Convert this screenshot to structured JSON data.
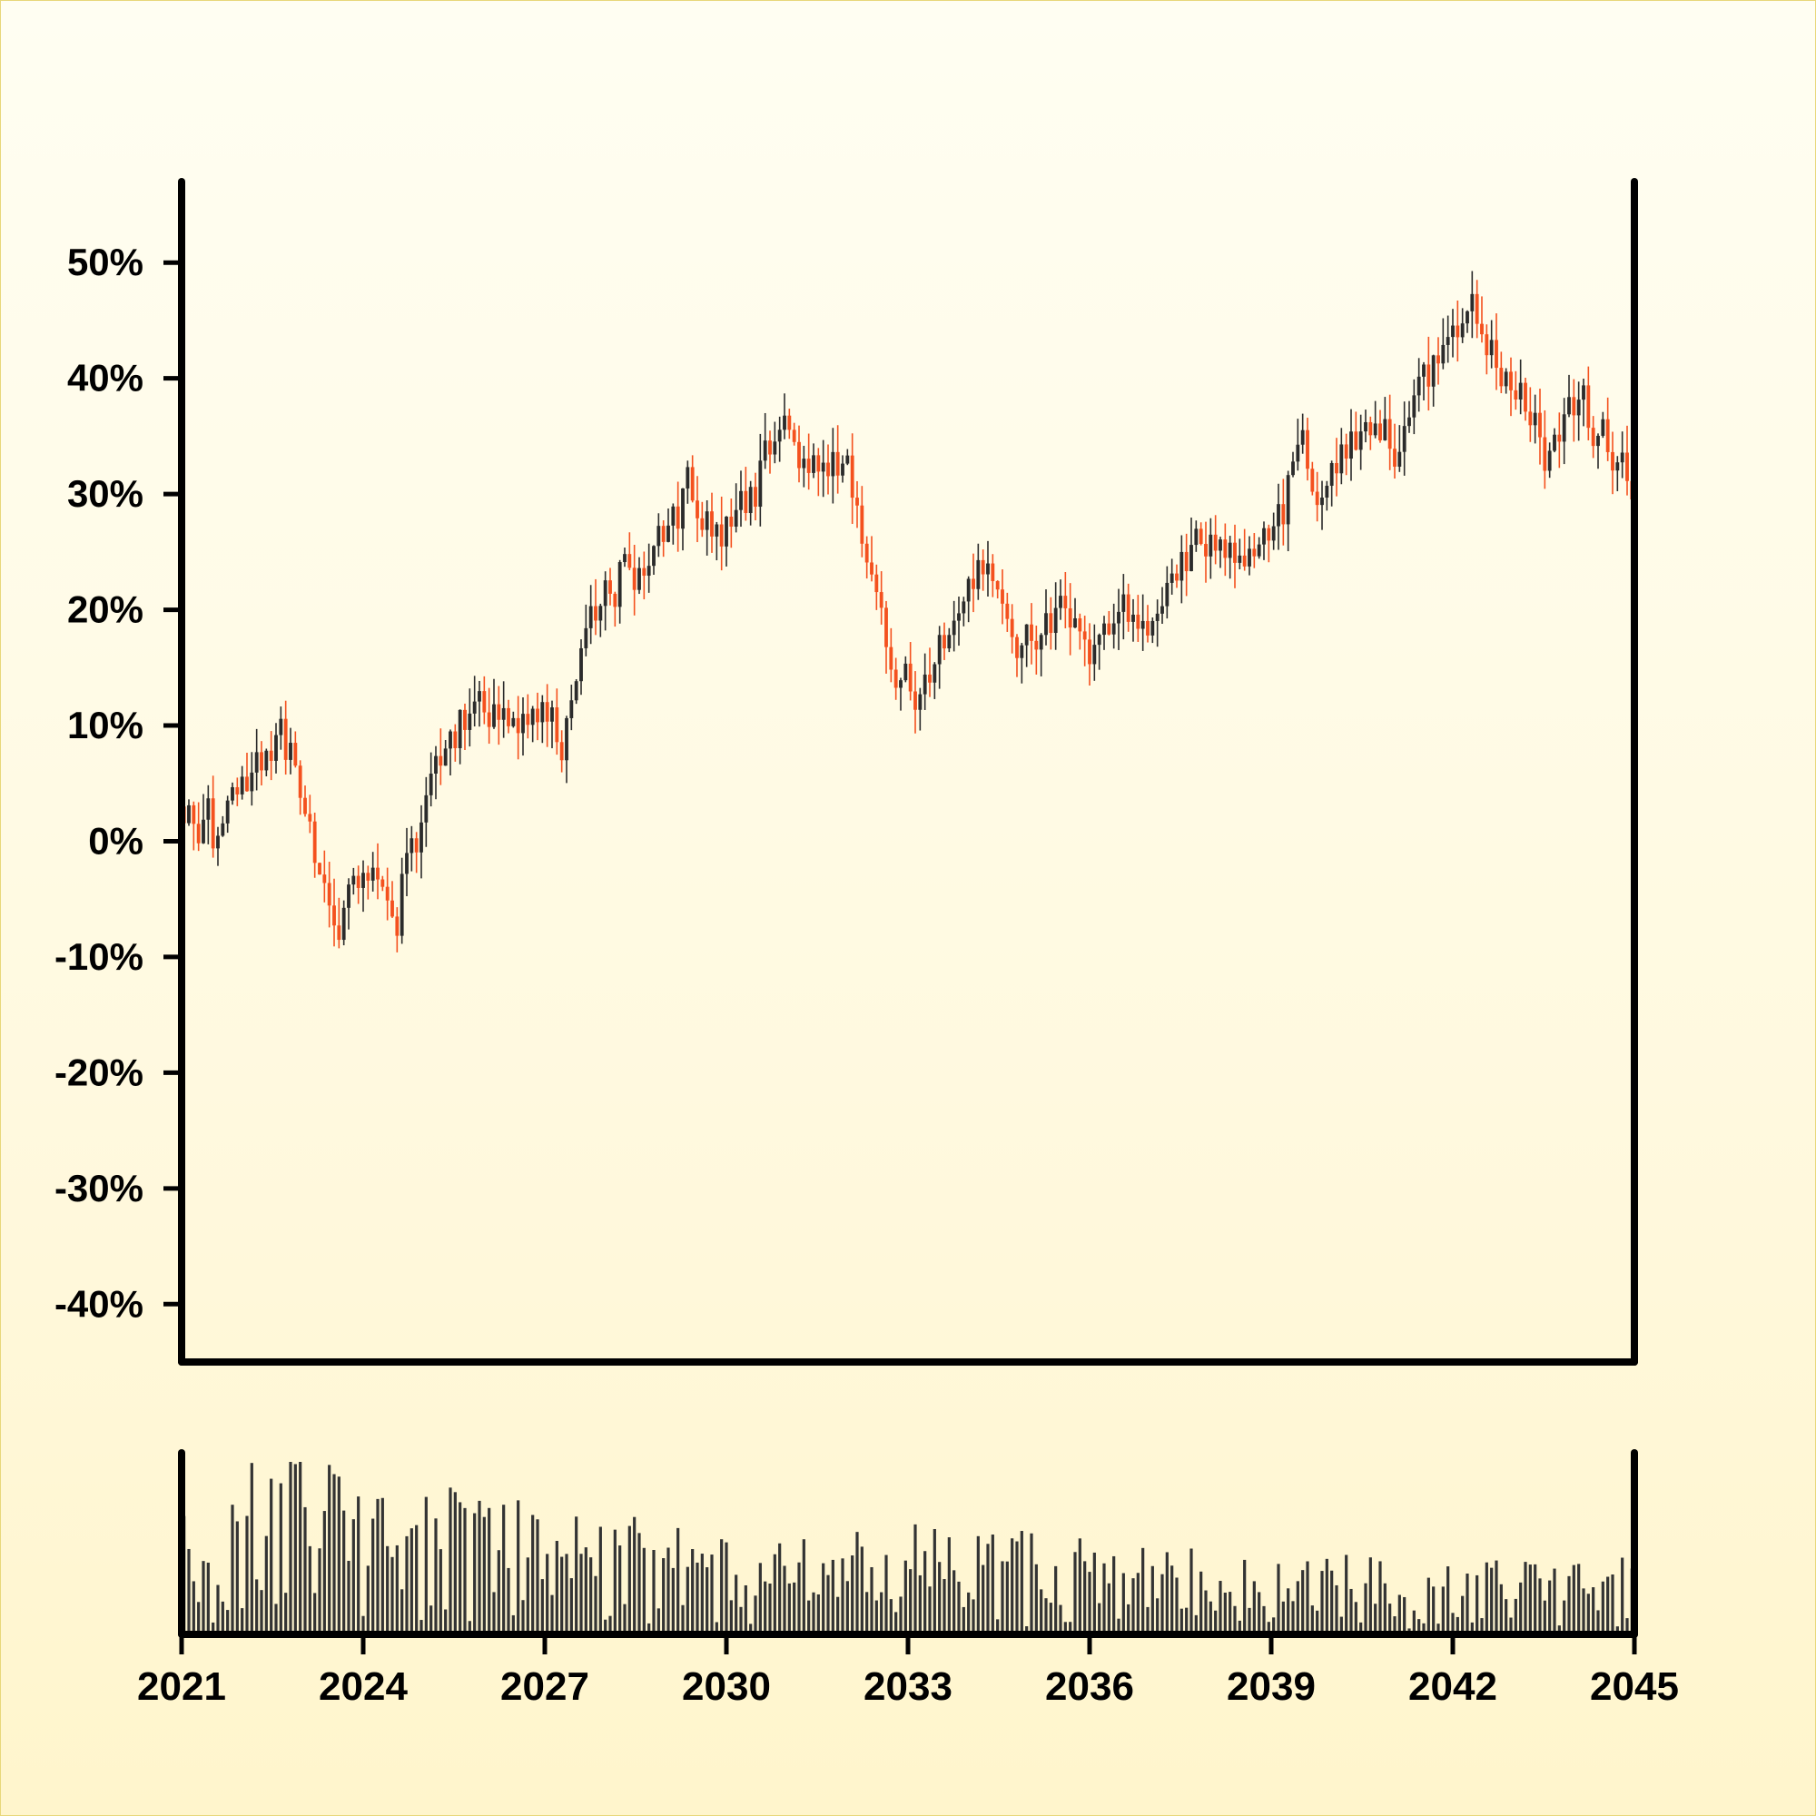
{
  "chart_data": [
    {
      "type": "candlestick",
      "title": "",
      "xlabel": "",
      "ylabel": "",
      "ylim": [
        -45,
        57
      ],
      "y_ticks": [
        -40,
        -30,
        -20,
        -10,
        0,
        10,
        20,
        30,
        40,
        50
      ],
      "y_tick_labels": [
        "-40%",
        "-30%",
        "-20%",
        "-10%",
        "0%",
        "10%",
        "20%",
        "30%",
        "40%",
        "50%"
      ],
      "colors": {
        "up": "#2b2b2b",
        "down": "#f4511e",
        "axis": "#000000"
      },
      "grid": false,
      "legend": "none",
      "close_path": [
        [
          "2021-01",
          3
        ],
        [
          "2021-07",
          0
        ],
        [
          "2022-01",
          5
        ],
        [
          "2022-07",
          8
        ],
        [
          "2022-10",
          8
        ],
        [
          "2023-01",
          4
        ],
        [
          "2023-04",
          -3
        ],
        [
          "2023-08",
          -7
        ],
        [
          "2024-01",
          -2
        ],
        [
          "2024-04",
          -3
        ],
        [
          "2024-07",
          -6
        ],
        [
          "2025-01",
          3
        ],
        [
          "2025-07",
          10
        ],
        [
          "2026-01",
          13
        ],
        [
          "2026-04",
          10
        ],
        [
          "2027-01",
          11
        ],
        [
          "2027-04",
          9
        ],
        [
          "2027-10",
          19
        ],
        [
          "2028-04",
          24
        ],
        [
          "2028-10",
          23
        ],
        [
          "2029-04",
          30
        ],
        [
          "2029-10",
          26
        ],
        [
          "2030-04",
          29
        ],
        [
          "2030-10",
          34
        ],
        [
          "2031-01",
          36
        ],
        [
          "2031-04",
          32
        ],
        [
          "2032-01",
          33
        ],
        [
          "2032-04",
          26
        ],
        [
          "2032-10",
          15
        ],
        [
          "2033-04",
          13
        ],
        [
          "2033-10",
          20
        ],
        [
          "2034-04",
          24
        ],
        [
          "2034-10",
          18
        ],
        [
          "2035-01",
          16
        ],
        [
          "2035-07",
          21
        ],
        [
          "2036-01",
          16
        ],
        [
          "2036-07",
          20
        ],
        [
          "2037-01",
          18
        ],
        [
          "2037-07",
          24
        ],
        [
          "2038-01",
          26
        ],
        [
          "2038-07",
          24
        ],
        [
          "2039-01",
          27
        ],
        [
          "2039-07",
          35
        ],
        [
          "2039-10",
          30
        ],
        [
          "2040-07",
          36
        ],
        [
          "2041-01",
          33
        ],
        [
          "2041-07",
          40
        ],
        [
          "2042-01",
          44
        ],
        [
          "2042-04",
          46
        ],
        [
          "2042-10",
          40
        ],
        [
          "2043-04",
          37
        ],
        [
          "2043-07",
          33
        ],
        [
          "2044-01",
          38
        ],
        [
          "2044-07",
          35
        ],
        [
          "2045-01",
          31
        ]
      ],
      "candle_count": 300,
      "ohlc_note": ""
    },
    {
      "type": "bar",
      "title": "",
      "xlabel": "",
      "ylabel": "",
      "x_range": [
        "2021-01-01",
        "2045-01-01"
      ],
      "x_ticks": [
        "2021",
        "2024",
        "2027",
        "2030",
        "2033",
        "2036",
        "2039",
        "2042",
        "2045"
      ],
      "bar_count": 300,
      "value_range": [
        0,
        1
      ],
      "volume_profile": [
        [
          "2021",
          0.35
        ],
        [
          "2022",
          0.5
        ],
        [
          "2023",
          0.55
        ],
        [
          "2024",
          0.5
        ],
        [
          "2025",
          0.45
        ],
        [
          "2026",
          0.4
        ],
        [
          "2027",
          0.35
        ],
        [
          "2028",
          0.33
        ],
        [
          "2029",
          0.3
        ],
        [
          "2030",
          0.28
        ],
        [
          "2031",
          0.25
        ],
        [
          "2032",
          0.28
        ],
        [
          "2033",
          0.32
        ],
        [
          "2034",
          0.3
        ],
        [
          "2035",
          0.28
        ],
        [
          "2036",
          0.27
        ],
        [
          "2037",
          0.24
        ],
        [
          "2038",
          0.24
        ],
        [
          "2039",
          0.24
        ],
        [
          "2040",
          0.22
        ],
        [
          "2041",
          0.22
        ],
        [
          "2042",
          0.2
        ],
        [
          "2043",
          0.22
        ],
        [
          "2044",
          0.25
        ],
        [
          "2045",
          0.25
        ]
      ],
      "colors": {
        "bar": "#333333",
        "axis": "#000000"
      }
    }
  ]
}
